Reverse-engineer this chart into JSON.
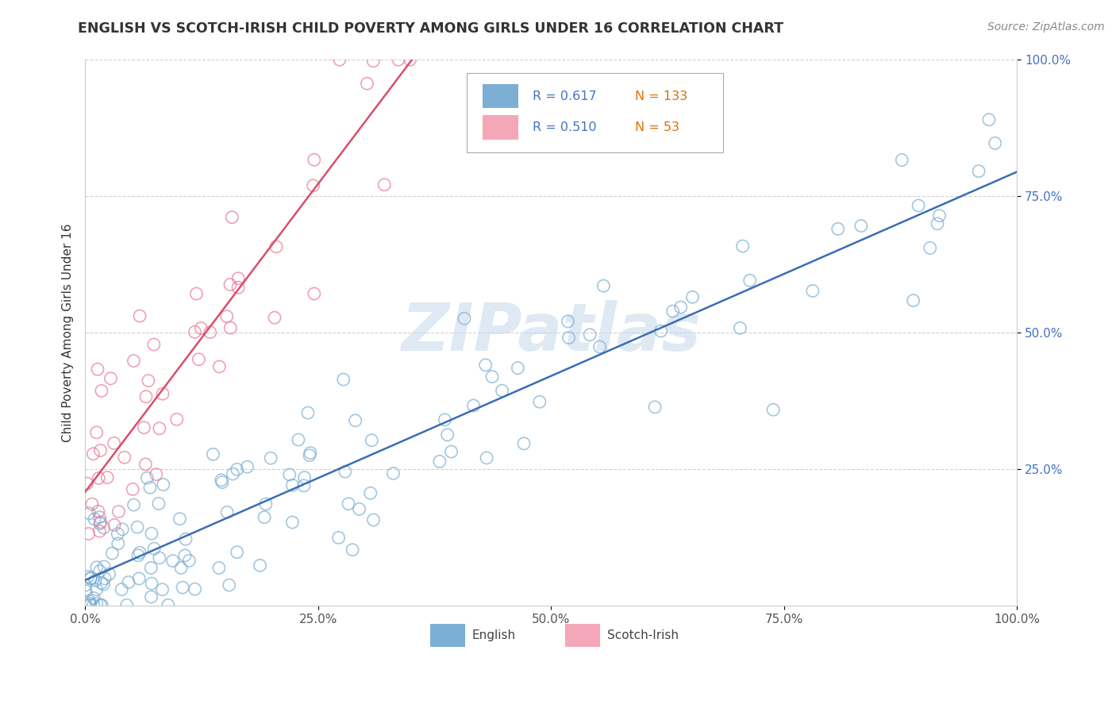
{
  "title": "ENGLISH VS SCOTCH-IRISH CHILD POVERTY AMONG GIRLS UNDER 16 CORRELATION CHART",
  "source": "Source: ZipAtlas.com",
  "ylabel": "Child Poverty Among Girls Under 16",
  "xlim": [
    0,
    1.0
  ],
  "ylim": [
    0,
    1.0
  ],
  "xticks": [
    0.0,
    0.25,
    0.5,
    0.75,
    1.0
  ],
  "xticklabels": [
    "0.0%",
    "25.0%",
    "50.0%",
    "75.0%",
    "100.0%"
  ],
  "yticks": [
    0.25,
    0.5,
    0.75,
    1.0
  ],
  "yticklabels": [
    "25.0%",
    "50.0%",
    "75.0%",
    "100.0%"
  ],
  "english_color": "#7bafd4",
  "english_edge": "#7bafd4",
  "scotch_color": "#f4a7b9",
  "scotch_edge": "#e87a99",
  "english_line_color": "#3b6db5",
  "scotch_line_color": "#d94f6b",
  "english_R": 0.617,
  "english_N": 133,
  "scotch_R": 0.51,
  "scotch_N": 53,
  "watermark": "ZIPatlas",
  "background_color": "#ffffff",
  "grid_color": "#cccccc",
  "title_color": "#333333",
  "source_color": "#888888",
  "ylabel_color": "#333333",
  "ytick_color": "#4472c4",
  "xtick_color": "#555555",
  "legend_text_r_color": "#4472c4",
  "legend_text_n_color": "#e07000"
}
